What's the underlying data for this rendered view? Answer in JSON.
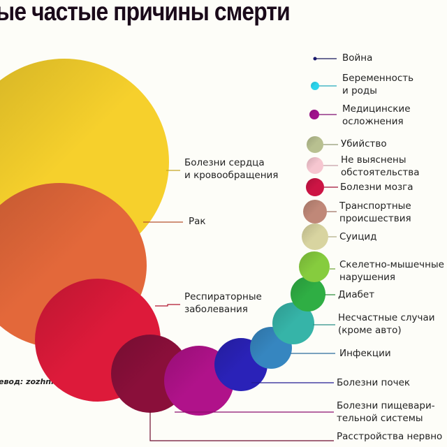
{
  "title": "ые частые причины смерти",
  "credit": "евод: zozhnik.ru",
  "causes": [
    {
      "label": "Болезни сердца\nи кровообращения",
      "color": "#f6d02c"
    },
    {
      "label": "Рак",
      "color": "#e3683a"
    },
    {
      "label": "Респираторные\nзаболевания",
      "color": "#dd1a3a"
    },
    {
      "label": "Расстройства нервно",
      "color": "#8a0f3a"
    },
    {
      "label": "Болезни пищевари-\nтельной системы",
      "color": "#b0128a"
    },
    {
      "label": "Болезни почек",
      "color": "#2a22b8"
    },
    {
      "label": "Инфекции",
      "color": "#3686c0"
    },
    {
      "label": "Несчастные случаи\n(кроме авто)",
      "color": "#36b4a8"
    },
    {
      "label": "Диабет",
      "color": "#2fae44"
    },
    {
      "label": "Скелетно-мышечные\nнарушения",
      "color": "#86cc3e"
    },
    {
      "label": "Суицид",
      "color": "#d8d4a0"
    },
    {
      "label": "Транспортные\nпроисшествия",
      "color": "#c08878"
    },
    {
      "label": "Болезни мозга",
      "color": "#cc1444"
    },
    {
      "label": "Не выяснены\nобстоятельства",
      "color": "#f6c6d0"
    },
    {
      "label": "Убийство",
      "color": "#b8c090"
    },
    {
      "label": "Медицинские\nосложнения",
      "color": "#a0108c"
    },
    {
      "label": "Беременность\nи роды",
      "color": "#2cd4ec"
    },
    {
      "label": "Война",
      "color": "#1a1a70"
    }
  ]
}
